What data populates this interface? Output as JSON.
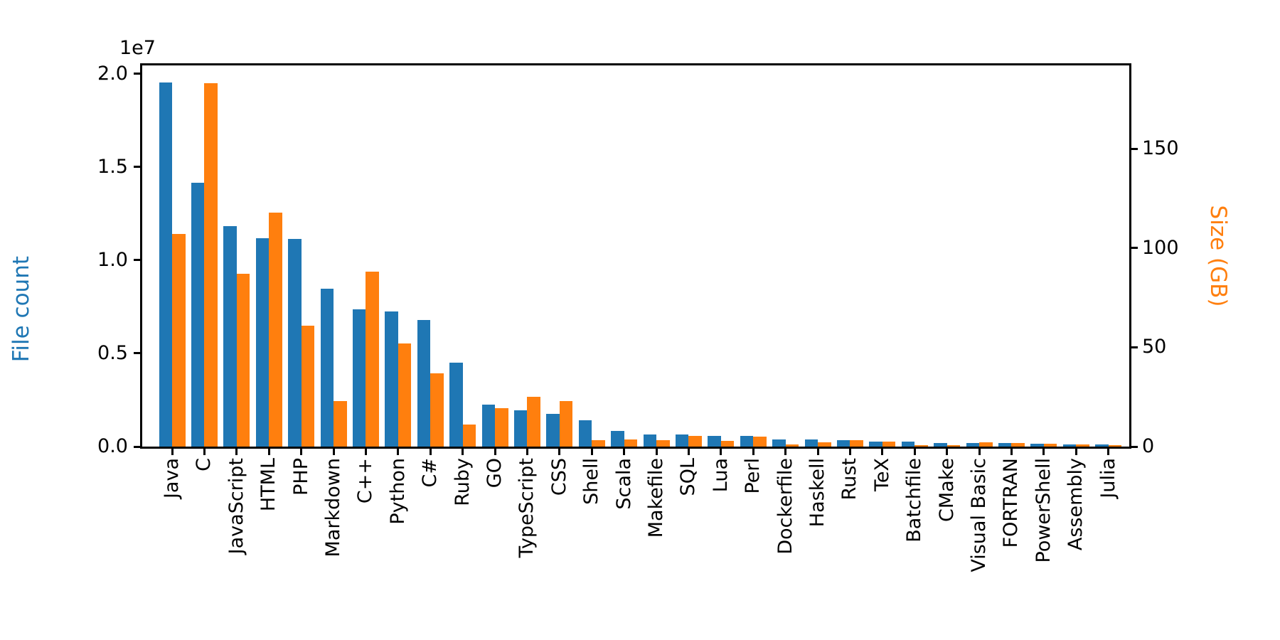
{
  "figure": {
    "background": "#ffffff",
    "text_color": "#000000"
  },
  "chart_data": {
    "type": "bar",
    "title": "",
    "grid": false,
    "legend": "none",
    "categories": [
      "Java",
      "C",
      "JavaScript",
      "HTML",
      "PHP",
      "Markdown",
      "C++",
      "Python",
      "C#",
      "Ruby",
      "GO",
      "TypeScript",
      "CSS",
      "Shell",
      "Scala",
      "Makefile",
      "SQL",
      "Lua",
      "Perl",
      "Dockerfile",
      "Haskell",
      "Rust",
      "TeX",
      "Batchfile",
      "CMake",
      "Visual Basic",
      "FORTRAN",
      "PowerShell",
      "Assembly",
      "Julia"
    ],
    "series": [
      {
        "name": "File count",
        "axis": "left",
        "color": "#1f77b4",
        "values": [
          19550000,
          14150000,
          11820000,
          11180000,
          11160000,
          8460000,
          7380000,
          7250000,
          6790000,
          4500000,
          2270000,
          1960000,
          1770000,
          1410000,
          840000,
          660000,
          660000,
          590000,
          560000,
          370000,
          370000,
          340000,
          280000,
          270000,
          210000,
          200000,
          180000,
          170000,
          110000,
          100000
        ]
      },
      {
        "name": "Size (GB)",
        "axis": "right",
        "color": "#ff7f0e",
        "values": [
          107,
          183,
          87,
          118,
          61,
          23,
          88,
          52,
          37,
          11,
          19.5,
          25,
          23,
          3.2,
          3.7,
          3.1,
          5.5,
          3.0,
          5.2,
          1.1,
          2.3,
          3.1,
          2.6,
          0.7,
          0.6,
          2.3,
          1.9,
          1.5,
          1.25,
          0.8
        ]
      }
    ],
    "left_axis": {
      "label": "File count",
      "color": "#1f77b4",
      "offset_label": "1e7",
      "tick_labels": [
        "0.0",
        "0.5",
        "1.0",
        "1.5",
        "2.0"
      ],
      "tick_values": [
        0,
        5000000,
        10000000,
        15000000,
        20000000
      ],
      "ylim": [
        0,
        20450000
      ]
    },
    "right_axis": {
      "label": "Size (GB)",
      "color": "#ff7f0e",
      "tick_labels": [
        "0",
        "50",
        "100",
        "150"
      ],
      "tick_values": [
        0,
        50,
        100,
        150
      ],
      "ylim": [
        0,
        192
      ]
    }
  }
}
